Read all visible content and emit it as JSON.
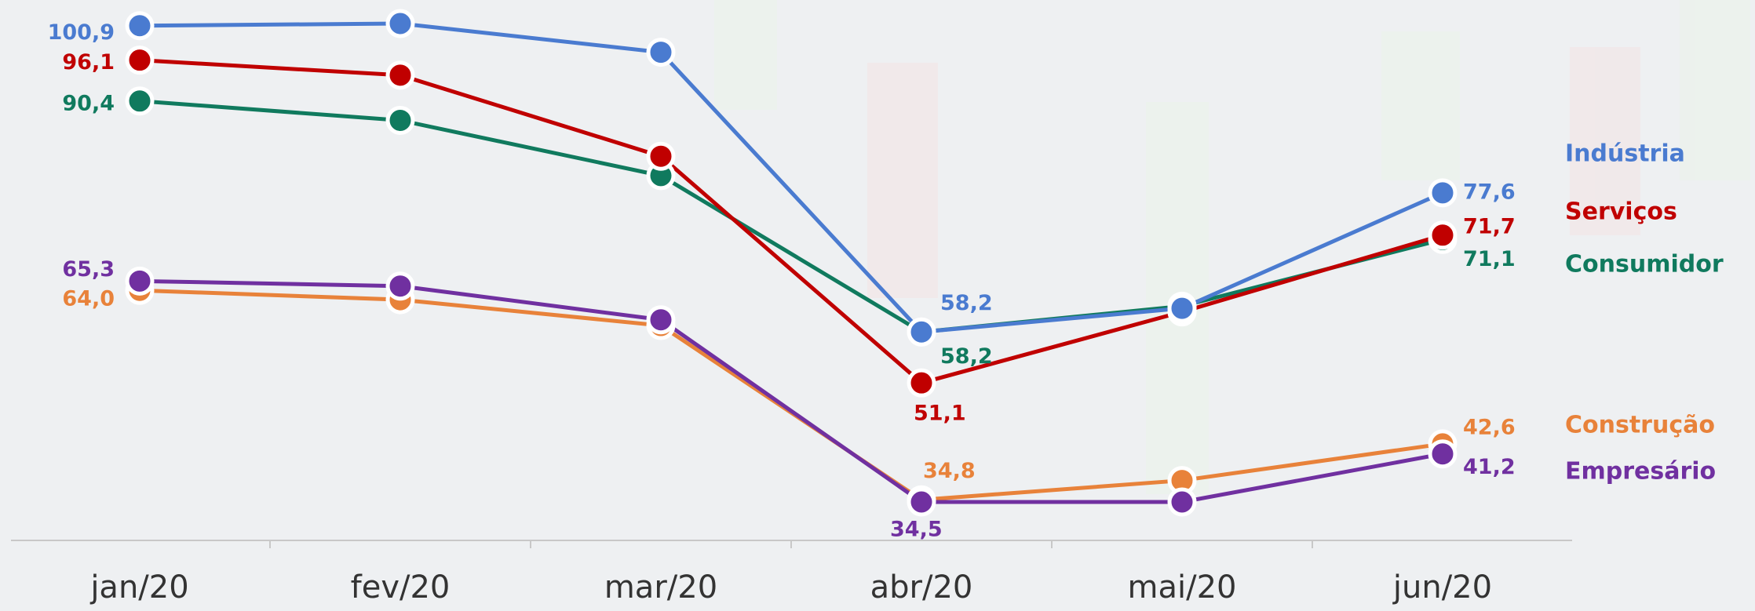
{
  "chart_data": {
    "type": "line",
    "categories": [
      "jan/20",
      "fev/20",
      "mar/20",
      "abr/20",
      "mai/20",
      "jun/20"
    ],
    "series": [
      {
        "name": "Indústria",
        "color": "#4a7bd0",
        "values": [
          100.9,
          101.2,
          97.2,
          58.2,
          61.5,
          77.6
        ],
        "value_labels": [
          "100,9",
          null,
          null,
          "58,2",
          null,
          "77,6"
        ]
      },
      {
        "name": "Serviços",
        "color": "#c00000",
        "values": [
          96.1,
          94.0,
          82.7,
          51.1,
          61.0,
          71.7
        ],
        "value_labels": [
          "96,1",
          null,
          null,
          "51,1",
          null,
          "71,7"
        ]
      },
      {
        "name": "Consumidor",
        "color": "#107a5e",
        "values": [
          90.4,
          87.7,
          80.0,
          58.2,
          61.8,
          71.1
        ],
        "value_labels": [
          "90,4",
          null,
          null,
          "58,2",
          null,
          "71,1"
        ]
      },
      {
        "name": "Construção",
        "color": "#e8823a",
        "values": [
          64.0,
          62.7,
          59.1,
          34.8,
          37.5,
          42.6
        ],
        "value_labels": [
          "64,0",
          null,
          null,
          "34,8",
          null,
          "42,6"
        ]
      },
      {
        "name": "Empresário",
        "color": "#7030a0",
        "values": [
          65.3,
          64.6,
          59.9,
          34.5,
          34.5,
          41.2
        ],
        "value_labels": [
          "65,3",
          null,
          null,
          "34,5",
          null,
          "41,2"
        ]
      }
    ]
  }
}
